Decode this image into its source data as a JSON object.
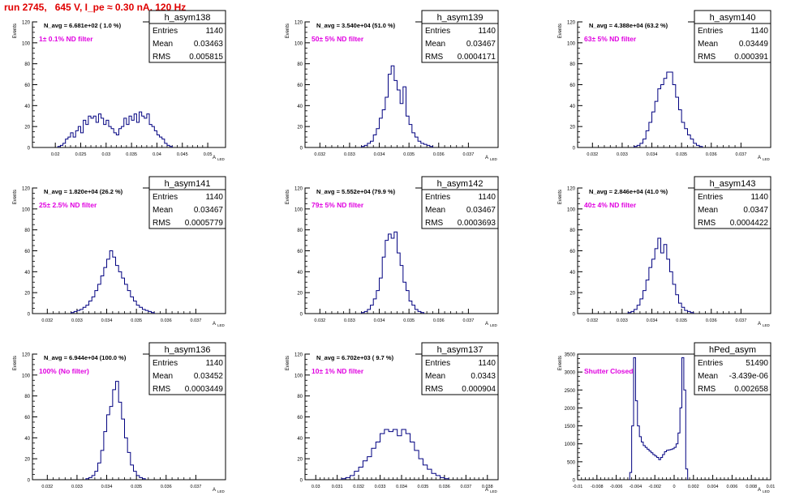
{
  "run_title": "run 2745,   645 V, I_pe ≈ 0.30 nA, 120 Hz",
  "colors": {
    "hist": "#000080",
    "annotation": "#e000e0",
    "title": "#e00000",
    "axis": "#000000"
  },
  "stat_labels": {
    "entries": "Entries",
    "mean": "Mean",
    "rms": "RMS"
  },
  "chart_data": [
    {
      "type": "histogram",
      "name": "h_asym138",
      "ylabel": "Events",
      "xlabel": "A_LED",
      "nav": "N_avg = 6.681e+02 ( 1.0 %)",
      "filter": "1± 0.1% ND filter",
      "entries": "1140",
      "mean": "0.03463",
      "rms": "0.005815",
      "xlim": [
        0.0155,
        0.0535
      ],
      "ylim": [
        0,
        120
      ],
      "xticks": [
        0.02,
        0.025,
        0.03,
        0.035,
        0.04,
        0.045,
        0.05
      ],
      "xticklabels": [
        "0.02",
        "0.025",
        "0.03",
        "0.035",
        "0.04",
        "0.045",
        "0.05"
      ],
      "yticks": [
        0,
        20,
        40,
        60,
        80,
        100,
        120
      ],
      "bins_x0": 0.0205,
      "bin_w": 0.0005,
      "counts": [
        1,
        2,
        4,
        8,
        10,
        14,
        10,
        16,
        20,
        14,
        26,
        22,
        30,
        28,
        30,
        24,
        32,
        28,
        22,
        26,
        20,
        18,
        14,
        12,
        18,
        20,
        28,
        22,
        30,
        26,
        32,
        24,
        34,
        30,
        28,
        32,
        22,
        20,
        16,
        12,
        10,
        8,
        4,
        2,
        1
      ]
    },
    {
      "type": "histogram",
      "name": "h_asym139",
      "ylabel": "Events",
      "xlabel": "A_LED",
      "nav": "N_avg = 3.540e+04 (51.0 %)",
      "filter": "50± 5% ND filter",
      "entries": "1140",
      "mean": "0.03467",
      "rms": "0.0004171",
      "xlim": [
        0.0315,
        0.038
      ],
      "ylim": [
        0,
        120
      ],
      "xticks": [
        0.032,
        0.033,
        0.034,
        0.035,
        0.036,
        0.037
      ],
      "xticklabels": [
        "0.032",
        "0.033",
        "0.034",
        "0.035",
        "0.036",
        "0.037"
      ],
      "yticks": [
        0,
        20,
        40,
        60,
        80,
        100,
        120
      ],
      "bins_x0": 0.0334,
      "bin_w": 0.0001,
      "counts": [
        1,
        2,
        4,
        6,
        12,
        18,
        28,
        36,
        48,
        70,
        78,
        64,
        55,
        42,
        58,
        30,
        22,
        14,
        10,
        6,
        4,
        3,
        2,
        1
      ]
    },
    {
      "type": "histogram",
      "name": "h_asym140",
      "ylabel": "Events",
      "xlabel": "A_LED",
      "nav": "N_avg = 4.388e+04 (63.2 %)",
      "filter": "63± 5% ND filter",
      "entries": "1140",
      "mean": "0.03449",
      "rms": "0.000391",
      "xlim": [
        0.0315,
        0.038
      ],
      "ylim": [
        0,
        120
      ],
      "xticks": [
        0.032,
        0.033,
        0.034,
        0.035,
        0.036,
        0.037
      ],
      "xticklabels": [
        "0.032",
        "0.033",
        "0.034",
        "0.035",
        "0.036",
        "0.037"
      ],
      "yticks": [
        0,
        20,
        40,
        60,
        80,
        100,
        120
      ],
      "bins_x0": 0.0334,
      "bin_w": 0.0001,
      "counts": [
        1,
        2,
        4,
        8,
        16,
        24,
        34,
        44,
        56,
        60,
        66,
        72,
        72,
        60,
        48,
        36,
        24,
        18,
        12,
        8,
        4,
        2,
        1
      ]
    },
    {
      "type": "histogram",
      "name": "h_asym141",
      "ylabel": "Events",
      "xlabel": "A_LED",
      "nav": "N_avg = 1.820e+04 (26.2 %)",
      "filter": "25± 2.5% ND filter",
      "entries": "1140",
      "mean": "0.03467",
      "rms": "0.0005779",
      "xlim": [
        0.0315,
        0.038
      ],
      "ylim": [
        0,
        120
      ],
      "xticks": [
        0.032,
        0.033,
        0.034,
        0.035,
        0.036,
        0.037
      ],
      "xticklabels": [
        "0.032",
        "0.033",
        "0.034",
        "0.035",
        "0.036",
        "0.037"
      ],
      "yticks": [
        0,
        20,
        40,
        60,
        80,
        100,
        120
      ],
      "bins_x0": 0.0328,
      "bin_w": 0.0001,
      "counts": [
        1,
        2,
        3,
        4,
        6,
        8,
        12,
        16,
        22,
        28,
        36,
        44,
        52,
        60,
        54,
        46,
        40,
        34,
        28,
        22,
        16,
        12,
        8,
        6,
        4,
        3,
        2,
        1
      ]
    },
    {
      "type": "histogram",
      "name": "h_asym142",
      "ylabel": "Events",
      "xlabel": "A_LED",
      "nav": "N_avg = 5.552e+04 (79.9 %)",
      "filter": "79± 5% ND filter",
      "entries": "1140",
      "mean": "0.03467",
      "rms": "0.0003693",
      "xlim": [
        0.0315,
        0.038
      ],
      "ylim": [
        0,
        120
      ],
      "xticks": [
        0.032,
        0.033,
        0.034,
        0.035,
        0.036,
        0.037
      ],
      "xticklabels": [
        "0.032",
        "0.033",
        "0.034",
        "0.035",
        "0.036",
        "0.037"
      ],
      "yticks": [
        0,
        20,
        40,
        60,
        80,
        100,
        120
      ],
      "bins_x0": 0.0334,
      "bin_w": 0.0001,
      "counts": [
        1,
        2,
        4,
        8,
        14,
        22,
        34,
        54,
        70,
        76,
        72,
        78,
        58,
        46,
        30,
        22,
        12,
        8,
        4,
        2,
        1
      ]
    },
    {
      "type": "histogram",
      "name": "h_asym143",
      "ylabel": "Events",
      "xlabel": "A_LED",
      "nav": "N_avg = 2.846e+04 (41.0 %)",
      "filter": "40± 4% ND filter",
      "entries": "1140",
      "mean": "0.0347",
      "rms": "0.0004422",
      "xlim": [
        0.0315,
        0.038
      ],
      "ylim": [
        0,
        120
      ],
      "xticks": [
        0.032,
        0.033,
        0.034,
        0.035,
        0.036,
        0.037
      ],
      "xticklabels": [
        "0.032",
        "0.033",
        "0.034",
        "0.035",
        "0.036",
        "0.037"
      ],
      "yticks": [
        0,
        20,
        40,
        60,
        80,
        100,
        120
      ],
      "bins_x0": 0.0332,
      "bin_w": 0.0001,
      "counts": [
        1,
        2,
        4,
        8,
        14,
        22,
        32,
        44,
        52,
        62,
        72,
        58,
        66,
        52,
        40,
        28,
        18,
        10,
        6,
        3,
        2,
        1
      ]
    },
    {
      "type": "histogram",
      "name": "h_asym136",
      "ylabel": "Events",
      "xlabel": "A_LED",
      "nav": "N_avg = 6.944e+04 (100.0 %)",
      "filter": "100% (No filter)",
      "entries": "1140",
      "mean": "0.03452",
      "rms": "0.0003449",
      "xlim": [
        0.0315,
        0.038
      ],
      "ylim": [
        0,
        120
      ],
      "xticks": [
        0.032,
        0.033,
        0.034,
        0.035,
        0.036,
        0.037
      ],
      "xticklabels": [
        "0.032",
        "0.033",
        "0.034",
        "0.035",
        "0.036",
        "0.037"
      ],
      "yticks": [
        0,
        20,
        40,
        60,
        80,
        100,
        120
      ],
      "bins_x0": 0.0333,
      "bin_w": 0.0001,
      "counts": [
        1,
        2,
        4,
        8,
        16,
        28,
        46,
        62,
        70,
        86,
        94,
        74,
        58,
        40,
        26,
        14,
        8,
        4,
        2,
        1
      ]
    },
    {
      "type": "histogram",
      "name": "h_asym137",
      "ylabel": "Events",
      "xlabel": "A_LED",
      "nav": "N_avg = 6.702e+03 ( 9.7 %)",
      "filter": "10± 1% ND filter",
      "entries": "1140",
      "mean": "0.0343",
      "rms": "0.000904",
      "xlim": [
        0.0295,
        0.0385
      ],
      "ylim": [
        0,
        120
      ],
      "xticks": [
        0.03,
        0.031,
        0.032,
        0.033,
        0.034,
        0.035,
        0.036,
        0.037,
        0.038
      ],
      "xticklabels": [
        "0.03",
        "0.031",
        "0.032",
        "0.033",
        "0.034",
        "0.035",
        "0.036",
        "0.037",
        "0.038"
      ],
      "yticks": [
        0,
        20,
        40,
        60,
        80,
        100,
        120
      ],
      "bins_x0": 0.0312,
      "bin_w": 0.0002,
      "counts": [
        1,
        2,
        4,
        8,
        12,
        18,
        22,
        30,
        36,
        44,
        48,
        46,
        48,
        42,
        48,
        44,
        36,
        28,
        20,
        14,
        10,
        6,
        4,
        2,
        1
      ]
    },
    {
      "type": "histogram",
      "name": "hPed_asym",
      "ylabel": "Events",
      "xlabel": "A_LED",
      "nav": "",
      "filter": "Shutter Closed",
      "entries": "51490",
      "mean": "-3.439e-06",
      "rms": "0.002658",
      "xlim": [
        -0.01,
        0.01
      ],
      "ylim": [
        0,
        3500
      ],
      "xticks": [
        -0.01,
        -0.008,
        -0.006,
        -0.004,
        -0.002,
        0,
        0.002,
        0.004,
        0.006,
        0.008,
        0.01
      ],
      "xticklabels": [
        "-0.01",
        "-0.008",
        "-0.006",
        "-0.004",
        "-0.002",
        "0",
        "0.002",
        "0.004",
        "0.006",
        "0.008",
        "0.01"
      ],
      "yticks": [
        0,
        500,
        1000,
        1500,
        2000,
        2500,
        3000,
        3500
      ],
      "bins_x0": -0.0046,
      "bin_w": 0.0002,
      "counts": [
        200,
        1500,
        3400,
        2200,
        1500,
        1200,
        1050,
        950,
        900,
        850,
        800,
        750,
        700,
        660,
        620,
        560,
        620,
        700,
        780,
        820,
        830,
        840,
        860,
        900,
        1000,
        1300,
        2000,
        3400,
        2500,
        300
      ]
    }
  ]
}
